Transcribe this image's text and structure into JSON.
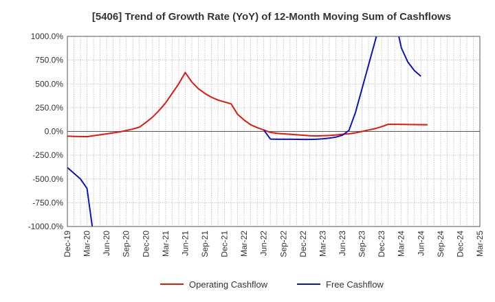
{
  "chart_data": {
    "type": "line",
    "title": "[5406]  Trend of Growth Rate (YoY) of 12-Month Moving Sum of Cashflows",
    "xlabel": "",
    "ylabel": "",
    "ylim": [
      -1000,
      1000
    ],
    "y_ticks": [
      1000,
      750,
      500,
      250,
      0,
      -250,
      -500,
      -750,
      -1000
    ],
    "y_tick_labels": [
      "1000.0%",
      "750.0%",
      "500.0%",
      "250.0%",
      "0.0%",
      "-250.0%",
      "-500.0%",
      "-750.0%",
      "-1000.0%"
    ],
    "x_range": [
      "2019-12",
      "2025-03"
    ],
    "x_tick_labels": [
      "Dec-19",
      "Mar-20",
      "Jun-20",
      "Sep-20",
      "Dec-20",
      "Mar-21",
      "Jun-21",
      "Sep-21",
      "Dec-21",
      "Mar-22",
      "Jun-22",
      "Sep-22",
      "Dec-22",
      "Mar-23",
      "Jun-23",
      "Sep-23",
      "Dec-23",
      "Mar-24",
      "Jun-24",
      "Sep-24",
      "Dec-24",
      "Mar-25"
    ],
    "grid": true,
    "legend": "bottom",
    "series": [
      {
        "name": "Operating Cashflow",
        "color": "#e8140c",
        "points": [
          [
            "2019-12",
            -50
          ],
          [
            "2020-01",
            -52
          ],
          [
            "2020-02",
            -53
          ],
          [
            "2020-03",
            -55
          ],
          [
            "2020-04",
            -45
          ],
          [
            "2020-05",
            -35
          ],
          [
            "2020-06",
            -25
          ],
          [
            "2020-07",
            -15
          ],
          [
            "2020-08",
            -5
          ],
          [
            "2020-09",
            10
          ],
          [
            "2020-10",
            25
          ],
          [
            "2020-11",
            45
          ],
          [
            "2020-12",
            95
          ],
          [
            "2021-01",
            150
          ],
          [
            "2021-02",
            220
          ],
          [
            "2021-03",
            300
          ],
          [
            "2021-04",
            400
          ],
          [
            "2021-05",
            500
          ],
          [
            "2021-06",
            620
          ],
          [
            "2021-07",
            520
          ],
          [
            "2021-08",
            450
          ],
          [
            "2021-09",
            400
          ],
          [
            "2021-10",
            360
          ],
          [
            "2021-11",
            330
          ],
          [
            "2021-12",
            310
          ],
          [
            "2022-01",
            290
          ],
          [
            "2022-02",
            180
          ],
          [
            "2022-03",
            120
          ],
          [
            "2022-04",
            70
          ],
          [
            "2022-05",
            40
          ],
          [
            "2022-06",
            15
          ],
          [
            "2022-07",
            -10
          ],
          [
            "2022-08",
            -20
          ],
          [
            "2022-09",
            -25
          ],
          [
            "2022-10",
            -30
          ],
          [
            "2022-11",
            -35
          ],
          [
            "2022-12",
            -40
          ],
          [
            "2023-01",
            -45
          ],
          [
            "2023-02",
            -48
          ],
          [
            "2023-03",
            -45
          ],
          [
            "2023-04",
            -42
          ],
          [
            "2023-05",
            -38
          ],
          [
            "2023-06",
            -30
          ],
          [
            "2023-07",
            -25
          ],
          [
            "2023-08",
            -15
          ],
          [
            "2023-09",
            0
          ],
          [
            "2023-10",
            15
          ],
          [
            "2023-11",
            30
          ],
          [
            "2023-12",
            50
          ],
          [
            "2024-01",
            75
          ],
          [
            "2024-02",
            75
          ],
          [
            "2024-03",
            74
          ],
          [
            "2024-04",
            73
          ],
          [
            "2024-05",
            72
          ],
          [
            "2024-06",
            71
          ],
          [
            "2024-07",
            70
          ]
        ]
      },
      {
        "name": "Free Cashflow",
        "color": "#0a12c8",
        "segments": [
          [
            [
              "2019-12",
              -380
            ],
            [
              "2020-01",
              -440
            ],
            [
              "2020-02",
              -500
            ],
            [
              "2020-03",
              -600
            ],
            [
              "2020-04",
              -1100
            ]
          ],
          [
            [
              "2022-06",
              15
            ],
            [
              "2022-07",
              -80
            ],
            [
              "2022-08",
              -82
            ],
            [
              "2022-09",
              -82
            ],
            [
              "2022-10",
              -82
            ],
            [
              "2022-11",
              -83
            ],
            [
              "2022-12",
              -84
            ],
            [
              "2023-01",
              -84
            ],
            [
              "2023-02",
              -82
            ],
            [
              "2023-03",
              -78
            ],
            [
              "2023-04",
              -70
            ],
            [
              "2023-05",
              -60
            ],
            [
              "2023-06",
              -40
            ],
            [
              "2023-07",
              10
            ],
            [
              "2023-08",
              200
            ],
            [
              "2023-09",
              450
            ],
            [
              "2023-10",
              700
            ],
            [
              "2023-11",
              950
            ],
            [
              "2023-12",
              1200
            ]
          ],
          [
            [
              "2024-02",
              1200
            ],
            [
              "2024-03",
              880
            ],
            [
              "2024-04",
              730
            ],
            [
              "2024-05",
              640
            ],
            [
              "2024-06",
              580
            ]
          ]
        ]
      }
    ]
  }
}
